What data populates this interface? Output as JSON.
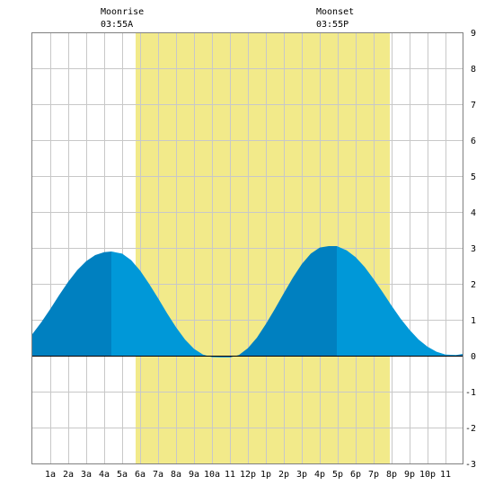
{
  "chart_data": {
    "type": "area",
    "title": "",
    "xlabel": "",
    "ylabel": "",
    "xlim": [
      0,
      24
    ],
    "ylim": [
      -3,
      9
    ],
    "yticks": [
      -3,
      -2,
      -1,
      0,
      1,
      2,
      3,
      4,
      5,
      6,
      7,
      8,
      9
    ],
    "xticks": [
      {
        "hour": 1,
        "label": "1a"
      },
      {
        "hour": 2,
        "label": "2a"
      },
      {
        "hour": 3,
        "label": "3a"
      },
      {
        "hour": 4,
        "label": "4a"
      },
      {
        "hour": 5,
        "label": "5a"
      },
      {
        "hour": 6,
        "label": "6a"
      },
      {
        "hour": 7,
        "label": "7a"
      },
      {
        "hour": 8,
        "label": "8a"
      },
      {
        "hour": 9,
        "label": "9a"
      },
      {
        "hour": 10,
        "label": "10a"
      },
      {
        "hour": 11,
        "label": "11"
      },
      {
        "hour": 12,
        "label": "12p"
      },
      {
        "hour": 13,
        "label": "1p"
      },
      {
        "hour": 14,
        "label": "2p"
      },
      {
        "hour": 15,
        "label": "3p"
      },
      {
        "hour": 16,
        "label": "4p"
      },
      {
        "hour": 17,
        "label": "5p"
      },
      {
        "hour": 18,
        "label": "6p"
      },
      {
        "hour": 19,
        "label": "7p"
      },
      {
        "hour": 20,
        "label": "8p"
      },
      {
        "hour": 21,
        "label": "9p"
      },
      {
        "hour": 22,
        "label": "10p"
      },
      {
        "hour": 23,
        "label": "11"
      }
    ],
    "grid": true,
    "moon": {
      "rise": {
        "title": "Moonrise",
        "time": "03:55A",
        "hour": 3.92
      },
      "set": {
        "title": "Moonset",
        "time": "03:55P",
        "hour": 15.92
      }
    },
    "daylight": {
      "start": 5.75,
      "end": 19.9
    },
    "extremes": [
      {
        "type": "high",
        "hour": 4.4,
        "height": 2.9
      },
      {
        "type": "low",
        "hour": 11.0,
        "height": -0.05
      },
      {
        "type": "high",
        "hour": 16.95,
        "height": 3.05
      },
      {
        "type": "low",
        "hour": 23.6,
        "height": 0.02
      }
    ],
    "series": [
      {
        "x": [
          0,
          0.5,
          1,
          1.5,
          2,
          2.5,
          3,
          3.5,
          4,
          4.4,
          5,
          5.5,
          6,
          6.5,
          7,
          7.5,
          8,
          8.5,
          9,
          9.5,
          10,
          10.5,
          11,
          11.5,
          12,
          12.5,
          13,
          13.5,
          14,
          14.5,
          15,
          15.5,
          16,
          16.5,
          16.95,
          17.5,
          18,
          18.5,
          19,
          19.5,
          20,
          20.5,
          21,
          21.5,
          22,
          22.5,
          23,
          23.6,
          24
        ],
        "y": [
          0.6,
          0.93,
          1.3,
          1.69,
          2.06,
          2.38,
          2.63,
          2.8,
          2.88,
          2.9,
          2.84,
          2.66,
          2.37,
          2.0,
          1.6,
          1.18,
          0.79,
          0.45,
          0.19,
          0.03,
          -0.04,
          -0.05,
          -0.05,
          0.02,
          0.21,
          0.5,
          0.88,
          1.3,
          1.74,
          2.17,
          2.55,
          2.84,
          3.01,
          3.05,
          3.05,
          2.93,
          2.74,
          2.47,
          2.13,
          1.77,
          1.39,
          1.03,
          0.72,
          0.45,
          0.25,
          0.11,
          0.03,
          0.02,
          0.05
        ]
      }
    ],
    "colors": {
      "daylight": "#f2ea8a",
      "flood": "#0080c0",
      "ebb": "#0098d8",
      "grid": "#c8c8c8",
      "frame": "#808080"
    }
  }
}
